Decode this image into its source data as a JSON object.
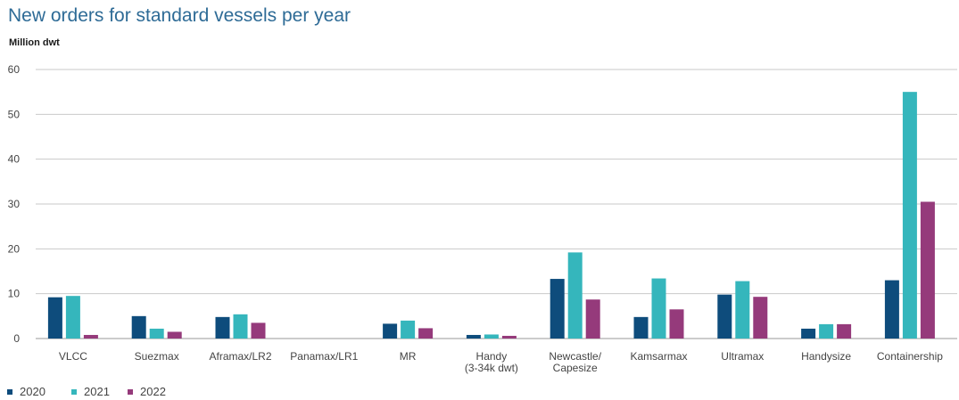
{
  "chart_data": {
    "type": "bar",
    "title": "New orders for standard vessels per year",
    "ylabel": "Million dwt",
    "xlabel": "",
    "ylim": [
      0,
      60
    ],
    "yticks": [
      0,
      10,
      20,
      30,
      40,
      50,
      60
    ],
    "grid": true,
    "legend_position": "bottom-left",
    "categories": [
      [
        "VLCC"
      ],
      [
        "Suezmax"
      ],
      [
        "Aframax/LR2"
      ],
      [
        "Panamax/LR1"
      ],
      [
        "MR"
      ],
      [
        "Handy",
        "(3-34k dwt)"
      ],
      [
        "Newcastle/",
        "Capesize"
      ],
      [
        "Kamsarmax"
      ],
      [
        "Ultramax"
      ],
      [
        "Handysize"
      ],
      [
        "Containership"
      ]
    ],
    "series": [
      {
        "name": "2020",
        "color": "#0e4c7c",
        "values": [
          9.2,
          5.0,
          4.8,
          0,
          3.3,
          0.8,
          13.3,
          4.8,
          9.8,
          2.2,
          13.0
        ]
      },
      {
        "name": "2021",
        "color": "#35b6bc",
        "values": [
          9.5,
          2.2,
          5.4,
          0,
          4.0,
          0.9,
          19.2,
          13.4,
          12.8,
          3.2,
          55.0
        ]
      },
      {
        "name": "2022",
        "color": "#953a7b",
        "values": [
          0.8,
          1.5,
          3.5,
          0,
          2.3,
          0.6,
          8.7,
          6.5,
          9.3,
          3.2,
          30.5
        ]
      }
    ]
  }
}
